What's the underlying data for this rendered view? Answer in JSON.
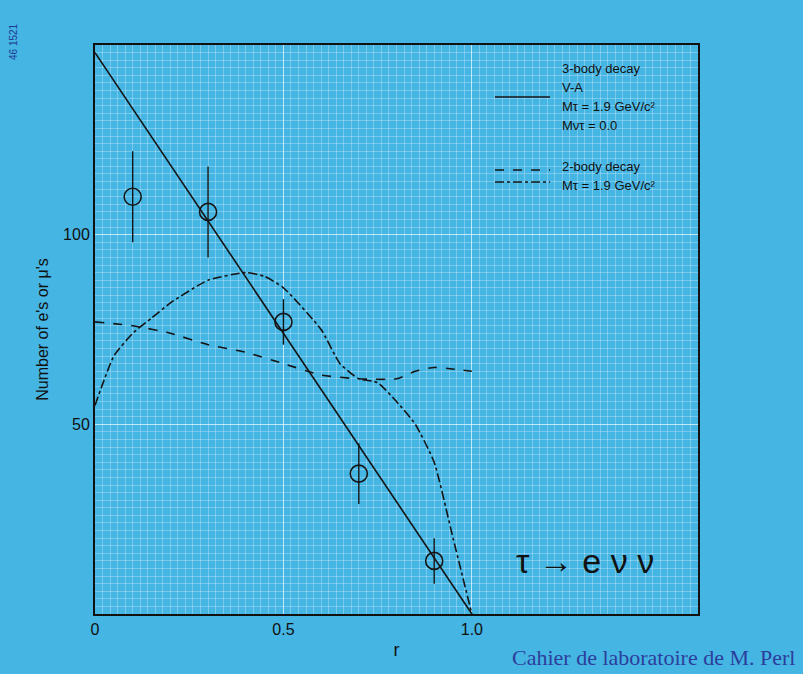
{
  "chart_data": {
    "type": "line",
    "x_label": "r",
    "y_label": "Number of e's or μ's",
    "xlim": [
      0,
      1.6
    ],
    "ylim": [
      0,
      150
    ],
    "xticks": [
      0,
      0.5,
      {
        "value": 1,
        "label": "1.0"
      }
    ],
    "yticks": [
      50,
      100
    ],
    "grid": true,
    "legend": "upper right",
    "annotations": [
      "τ → e ν ν",
      "Cahier de laboratoire de M. Perl",
      "46 1521"
    ],
    "series": [
      {
        "name": "3-body decay",
        "notes": [
          "V-A",
          "Mτ = 1.9 GeV/c²",
          "Mντ = 0.0"
        ],
        "type": "line",
        "line_style": "solid",
        "color": "#141414",
        "x": [
          0,
          1
        ],
        "values": [
          148,
          0
        ]
      },
      {
        "name": "2-body decay",
        "notes": [
          "Mτ = 1.9 GeV/c²"
        ],
        "type": "line",
        "line_style": "dash",
        "color": "#141414",
        "x": [
          0,
          0.1,
          0.2,
          0.3,
          0.4,
          0.5,
          0.6,
          0.7,
          0.8,
          0.85,
          0.9,
          1.0
        ],
        "values": [
          77,
          76,
          74,
          71,
          69,
          66,
          63,
          62,
          62,
          64,
          65,
          64
        ]
      },
      {
        "name": "2-body decay",
        "type": "line",
        "line_style": "dashdot",
        "color": "#141414",
        "x": [
          0,
          0.05,
          0.1,
          0.15,
          0.2,
          0.3,
          0.4,
          0.45,
          0.5,
          0.6,
          0.65,
          0.7,
          0.75,
          0.8,
          0.85,
          0.9,
          0.95,
          1.0
        ],
        "values": [
          55,
          68,
          74,
          78,
          82,
          88,
          90,
          89,
          86,
          75,
          66,
          62,
          61,
          56,
          50,
          40,
          20,
          0
        ]
      },
      {
        "type": "scatter",
        "marker": "circle-open",
        "color": "#141414",
        "x": [
          0.1,
          0.3,
          0.5,
          0.7,
          0.9
        ],
        "values": [
          110,
          106,
          77,
          37,
          14
        ],
        "errors": [
          12,
          12,
          6,
          8,
          6
        ]
      }
    ]
  }
}
